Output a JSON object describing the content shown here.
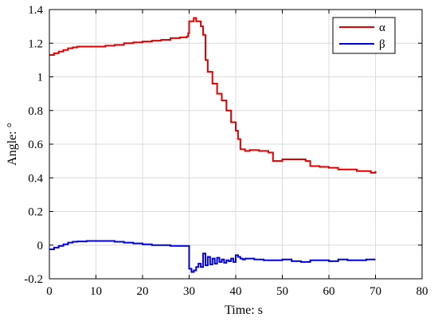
{
  "chart_data": {
    "type": "line",
    "title": "",
    "xlabel": "Time: s",
    "ylabel": "Angle: °",
    "xlim": [
      0,
      80
    ],
    "ylim": [
      -0.2,
      1.4
    ],
    "grid": true,
    "legend_position": "top-right",
    "x_ticks": [
      "0",
      "10",
      "20",
      "30",
      "40",
      "50",
      "60",
      "70",
      "80"
    ],
    "y_ticks": [
      "-0.2",
      "0",
      "0.2",
      "0.4",
      "0.6",
      "0.8",
      "1",
      "1.2",
      "1.4"
    ],
    "series": [
      {
        "name": "α",
        "color": "#e00000",
        "x": [
          0,
          1,
          2,
          3,
          4,
          5,
          6,
          8,
          10,
          12,
          14,
          16,
          18,
          20,
          22,
          24,
          26,
          28,
          29.5,
          29.8,
          30,
          31,
          31.5,
          32,
          32.5,
          33,
          33.5,
          34,
          35,
          36,
          37,
          38,
          39,
          40,
          40.5,
          41,
          42,
          43,
          44,
          45,
          46,
          47,
          48,
          50,
          52,
          54,
          55,
          56,
          58,
          60,
          62,
          64,
          66,
          68,
          69,
          70
        ],
        "y": [
          1.13,
          1.14,
          1.15,
          1.16,
          1.17,
          1.175,
          1.18,
          1.18,
          1.18,
          1.185,
          1.19,
          1.2,
          1.205,
          1.21,
          1.215,
          1.22,
          1.23,
          1.235,
          1.24,
          1.26,
          1.33,
          1.35,
          1.33,
          1.33,
          1.3,
          1.25,
          1.1,
          1.03,
          0.96,
          0.9,
          0.86,
          0.8,
          0.73,
          0.68,
          0.63,
          0.57,
          0.56,
          0.565,
          0.565,
          0.56,
          0.56,
          0.55,
          0.5,
          0.51,
          0.51,
          0.51,
          0.5,
          0.47,
          0.465,
          0.46,
          0.45,
          0.45,
          0.44,
          0.44,
          0.43,
          0.44
        ]
      },
      {
        "name": "β",
        "color": "#0000dd",
        "x": [
          0,
          1,
          2,
          3,
          4,
          5,
          6,
          8,
          10,
          12,
          14,
          16,
          18,
          20,
          22,
          24,
          26,
          28,
          29.8,
          30,
          30.5,
          31,
          31.5,
          32,
          32.5,
          33,
          33.5,
          34,
          34.5,
          35,
          35.5,
          36,
          36.5,
          37,
          37.5,
          38,
          38.5,
          39,
          39.5,
          40,
          40.5,
          41,
          41.5,
          42,
          44,
          46,
          48,
          50,
          52,
          54,
          56,
          58,
          60,
          62,
          64,
          66,
          68,
          70
        ],
        "y": [
          -0.025,
          -0.015,
          -0.005,
          0.005,
          0.015,
          0.02,
          0.022,
          0.025,
          0.025,
          0.025,
          0.02,
          0.015,
          0.01,
          0.005,
          0.0,
          0.0,
          -0.005,
          -0.005,
          -0.005,
          -0.14,
          -0.16,
          -0.15,
          -0.13,
          -0.11,
          -0.13,
          -0.05,
          -0.12,
          -0.07,
          -0.115,
          -0.08,
          -0.11,
          -0.075,
          -0.1,
          -0.085,
          -0.105,
          -0.09,
          -0.095,
          -0.08,
          -0.1,
          -0.06,
          -0.07,
          -0.08,
          -0.085,
          -0.08,
          -0.085,
          -0.09,
          -0.09,
          -0.085,
          -0.095,
          -0.1,
          -0.09,
          -0.09,
          -0.095,
          -0.085,
          -0.09,
          -0.09,
          -0.085,
          -0.085
        ]
      }
    ]
  }
}
